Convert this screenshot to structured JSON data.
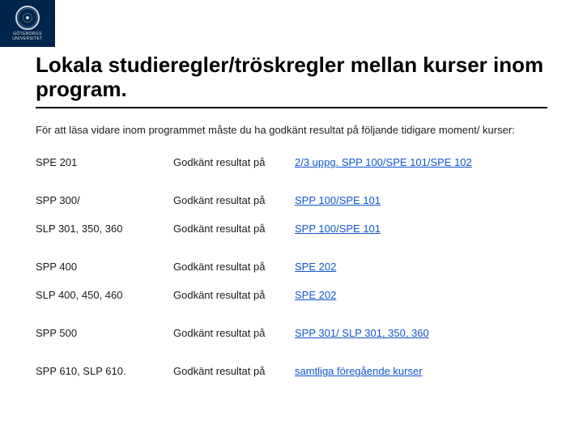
{
  "logo": {
    "line1": "GÖTEBORGS",
    "line2": "UNIVERSITET"
  },
  "title": "Lokala studieregler/tröskregler mellan kurser inom program.",
  "intro": "För att läsa vidare inom programmet måste du ha godkänt resultat på följande tidigare moment/ kurser:",
  "req_label": "Godkänt resultat på",
  "rows": [
    {
      "course": "SPE 201",
      "link": "2/3 uppg. SPP 100/SPE 101/SPE 102",
      "gap": true
    },
    {
      "course": "SPP 300/",
      "link": "SPP 100/SPE 101",
      "gap": false
    },
    {
      "course": "SLP 301, 350, 360",
      "link": "SPP 100/SPE 101",
      "gap": true
    },
    {
      "course": "SPP 400",
      "link": "SPE 202",
      "gap": false
    },
    {
      "course": "SLP 400, 450, 460",
      "link": "SPE 202",
      "gap": true
    },
    {
      "course": "SPP 500",
      "link": "SPP 301/ SLP 301, 350, 360",
      "gap": true
    },
    {
      "course": "SPP 610, SLP 610.",
      "link": "samtliga föregående kurser",
      "gap": false
    }
  ],
  "colors": {
    "logo_bg": "#00254a",
    "link": "#1155cc",
    "text": "#000000",
    "rule": "#000000"
  }
}
